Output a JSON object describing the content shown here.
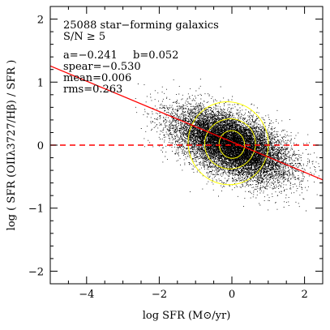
{
  "chart_data": {
    "type": "scatter",
    "title": "",
    "xlabel": "log SFR (M⊙/yr)",
    "ylabel": "log ( SFR (OIIλ3727/Hβ) / SFR )",
    "xlim": [
      -5,
      2.5
    ],
    "ylim": [
      -2.2,
      2.2
    ],
    "xticks": [
      -4,
      -2,
      0,
      2
    ],
    "xtick_labels": [
      "−4",
      "−2",
      "0",
      "2"
    ],
    "yticks": [
      -2,
      -1,
      0,
      1,
      2
    ],
    "ytick_labels": [
      "−2",
      "−1",
      "0",
      "1",
      "2"
    ],
    "grid": false,
    "annotations": {
      "line1": "25088 star−forming galaxics",
      "line2": "S/N ≥ 5",
      "line3a": "a=−0.241",
      "line3b": "b=0.052",
      "line4": "spear=−0.530",
      "line5": "mean=0.006",
      "line6": "rms=0.263"
    },
    "point_count": 25088,
    "point_cloud": {
      "center": [
        0.0,
        0.0
      ],
      "x_spread": 0.75,
      "y_spread": 0.27,
      "correlation": -0.53,
      "x_extent": [
        -2.7,
        2.4
      ],
      "color": "#000000"
    },
    "fit_line": {
      "slope": -0.241,
      "intercept": 0.052,
      "color": "#ff0000",
      "style": "solid"
    },
    "zero_line": {
      "y": 0,
      "color": "#ff0000",
      "style": "dashed"
    },
    "contours": {
      "color": "#ffff00",
      "levels": [
        {
          "center": [
            0.0,
            0.01
          ],
          "semi_axes": [
            0.35,
            0.1
          ],
          "angle_deg": -13
        },
        {
          "center": [
            -0.05,
            0.02
          ],
          "semi_axes": [
            0.7,
            0.18
          ],
          "angle_deg": -15
        },
        {
          "center": [
            -0.1,
            0.03
          ],
          "semi_axes": [
            1.1,
            0.3
          ],
          "angle_deg": -17
        }
      ]
    }
  }
}
